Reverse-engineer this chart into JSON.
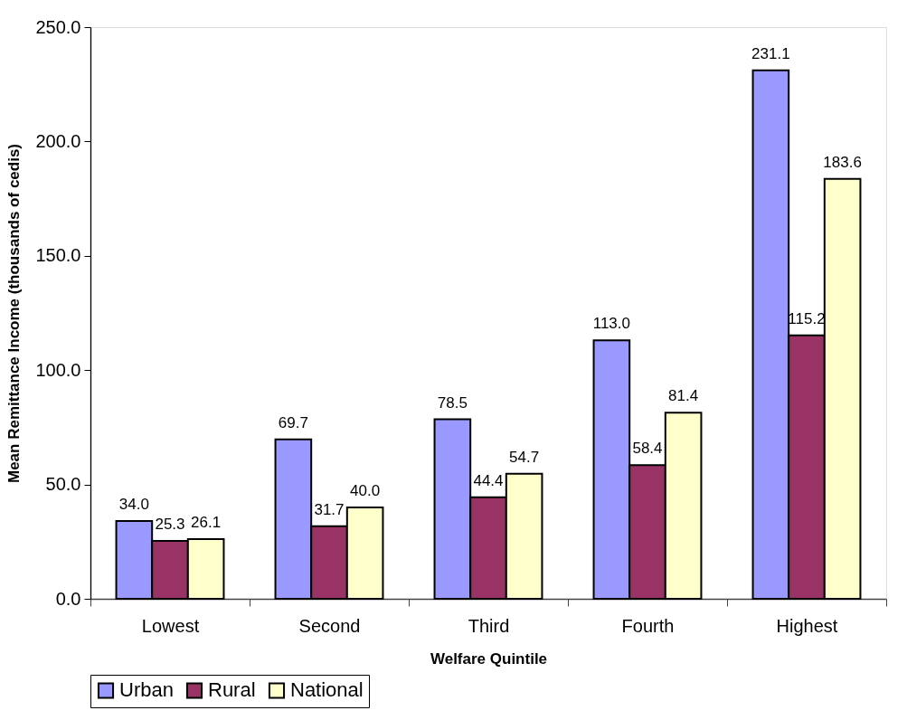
{
  "chart_data": {
    "type": "bar",
    "xlabel": "Welfare Quintile",
    "ylabel": "Mean Remittance Income (thousands of cedis)",
    "categories": [
      "Lowest",
      "Second",
      "Third",
      "Fourth",
      "Highest"
    ],
    "series": [
      {
        "name": "Urban",
        "color": "#9999ff",
        "values": [
          34.0,
          69.7,
          78.5,
          113.0,
          231.1
        ],
        "value_labels": [
          "34.0",
          "69.7",
          "78.5",
          "113.0",
          "231.1"
        ]
      },
      {
        "name": "Rural",
        "color": "#993366",
        "values": [
          25.3,
          31.7,
          44.4,
          58.4,
          115.2
        ],
        "value_labels": [
          "25.3",
          "31.7",
          "44.4",
          "58.4",
          "115.2"
        ]
      },
      {
        "name": "National",
        "color": "#ffffcc",
        "values": [
          26.1,
          40.0,
          54.7,
          81.4,
          183.6
        ],
        "value_labels": [
          "26.1",
          "40.0",
          "54.7",
          "81.4",
          "183.6"
        ]
      }
    ],
    "ylim": [
      0,
      250
    ],
    "yticks": [
      {
        "value": 0,
        "label": "0.0"
      },
      {
        "value": 50,
        "label": "50.0"
      },
      {
        "value": 100,
        "label": "100.0"
      },
      {
        "value": 150,
        "label": "150.0"
      },
      {
        "value": 200,
        "label": "200.0"
      },
      {
        "value": 250,
        "label": "250.0"
      }
    ],
    "grid": false,
    "legend": "bottom"
  }
}
